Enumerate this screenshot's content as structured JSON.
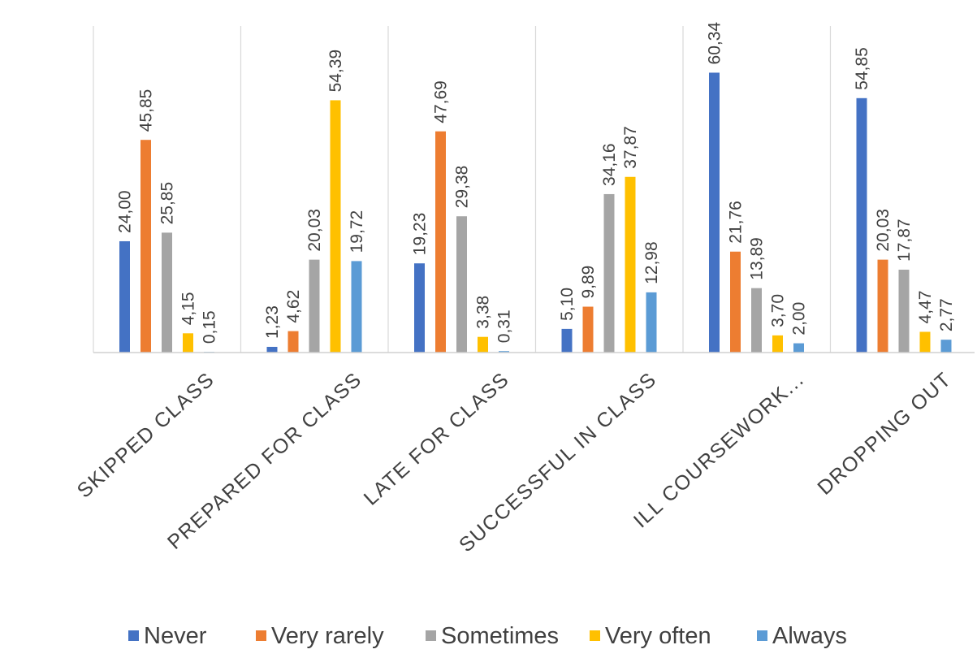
{
  "chart_data": {
    "type": "bar",
    "title": "",
    "categories": [
      "SKIPPED CLASS",
      "PREPARED FOR CLASS",
      "LATE FOR CLASS",
      "SUCCESSFUL IN CLASS",
      "ILL COURSEWORK...",
      "DROPPING OUT"
    ],
    "series": [
      {
        "name": "Never",
        "color": "#4472C4",
        "values": [
          24.0,
          1.23,
          19.23,
          5.1,
          60.34,
          54.85
        ],
        "labels": [
          "24,00",
          "1,23",
          "19,23",
          "5,10",
          "60,34",
          "54,85"
        ]
      },
      {
        "name": "Very rarely",
        "color": "#ED7D31",
        "values": [
          45.85,
          4.62,
          47.69,
          9.89,
          21.76,
          20.03
        ],
        "labels": [
          "45,85",
          "4,62",
          "47,69",
          "9,89",
          "21,76",
          "20,03"
        ]
      },
      {
        "name": "Sometimes",
        "color": "#A5A5A5",
        "values": [
          25.85,
          20.03,
          29.38,
          34.16,
          13.89,
          17.87
        ],
        "labels": [
          "25,85",
          "20,03",
          "29,38",
          "34,16",
          "13,89",
          "17,87"
        ]
      },
      {
        "name": "Very often",
        "color": "#FFC000",
        "values": [
          4.15,
          54.39,
          3.38,
          37.87,
          3.7,
          4.47
        ],
        "labels": [
          "4,15",
          "54,39",
          "3,38",
          "37,87",
          "3,70",
          "4,47"
        ]
      },
      {
        "name": "Always",
        "color": "#5B9BD5",
        "values": [
          0.15,
          19.72,
          0.31,
          12.98,
          2.0,
          2.77
        ],
        "labels": [
          "0,15",
          "19,72",
          "0,31",
          "12,98",
          "2,00",
          "2,77"
        ]
      }
    ],
    "ylim": [
      0,
      65
    ],
    "grid": false,
    "legend_position": "bottom",
    "xlabel": "",
    "ylabel": ""
  }
}
